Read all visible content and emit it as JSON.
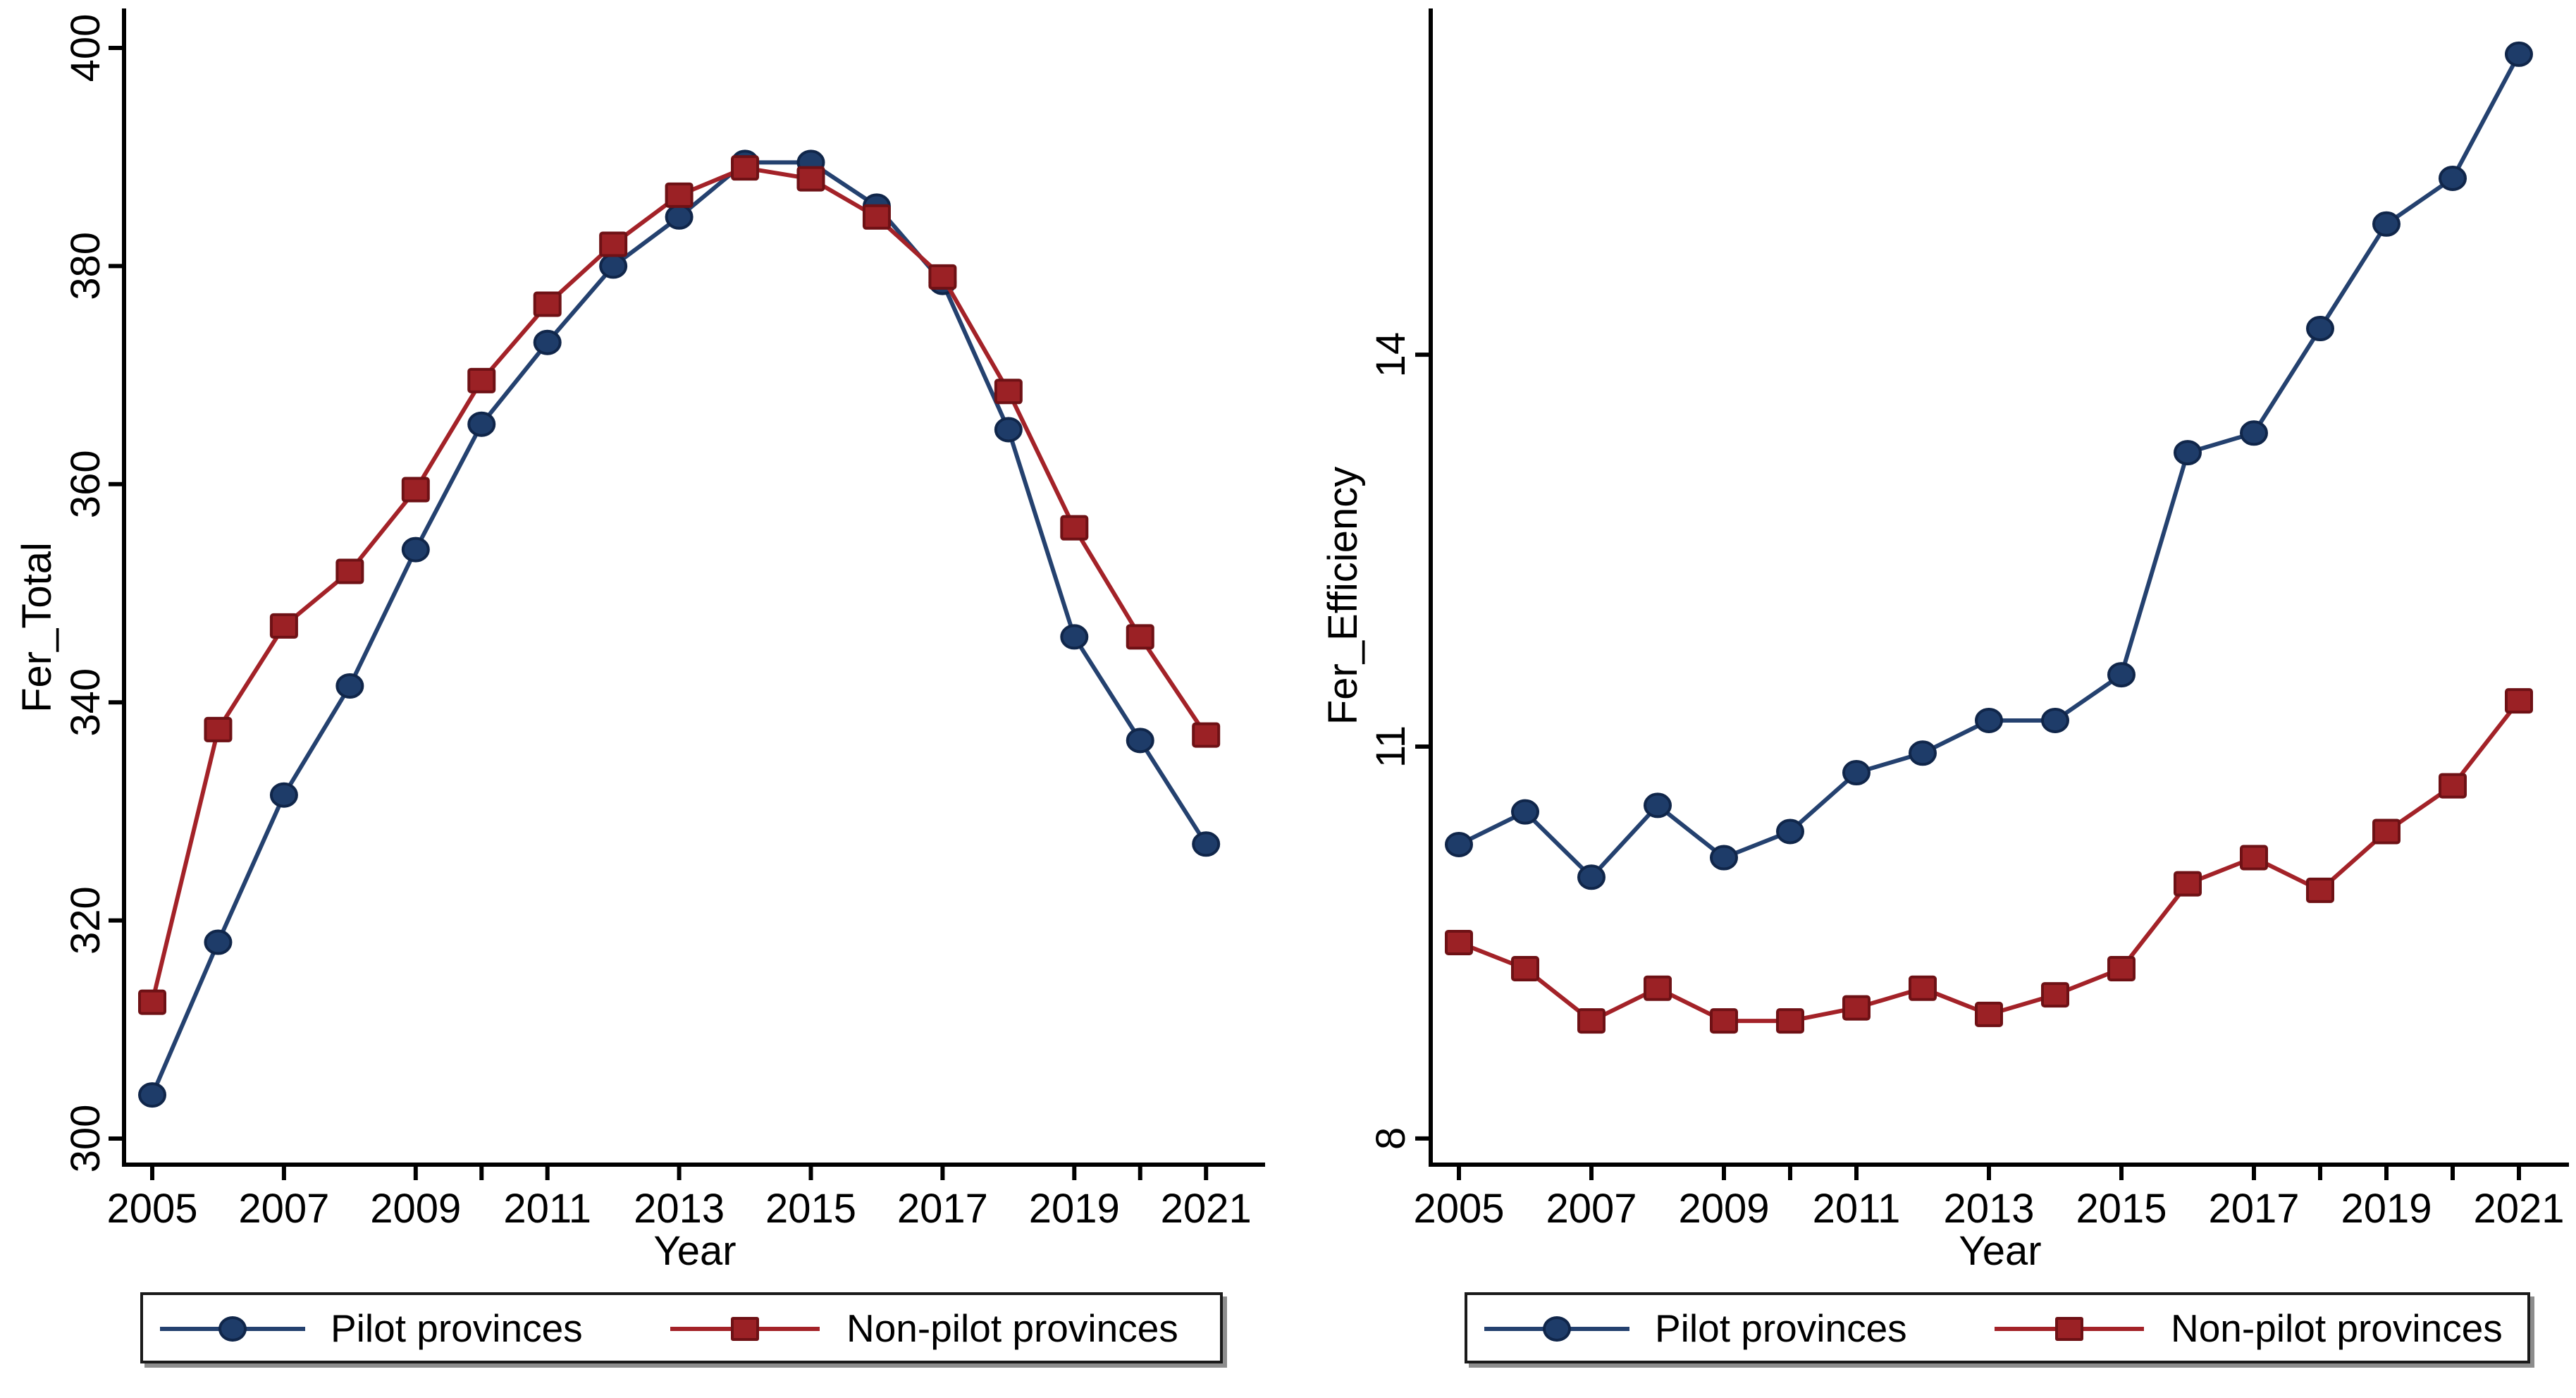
{
  "figure": {
    "background": "#ffffff",
    "description": "Two Stata-style line charts comparing pilot and non-pilot provinces, 2005-2021"
  },
  "colors": {
    "pilot_line": "#24416f",
    "pilot_fill": "#1e3c69",
    "pilot_stroke": "#10264a",
    "nonpilot_line": "#a32228",
    "nonpilot_fill": "#9b2125",
    "nonpilot_stroke": "#6e1115",
    "axis": "#000000",
    "text": "#000000"
  },
  "legend": {
    "pilot_label": "Pilot provinces",
    "nonpilot_label": "Non-pilot provinces",
    "pilot_marker": "circle-icon",
    "nonpilot_marker": "square-icon"
  },
  "chart_data": [
    {
      "type": "line",
      "title": "",
      "xlabel": "Year",
      "ylabel": "Fer_Total",
      "x": [
        2005,
        2006,
        2007,
        2008,
        2009,
        2010,
        2011,
        2012,
        2013,
        2014,
        2015,
        2016,
        2017,
        2018,
        2019,
        2020,
        2021
      ],
      "xticks": [
        2005,
        2007,
        2009,
        2010,
        2011,
        2013,
        2015,
        2017,
        2019,
        2020,
        2021
      ],
      "xtick_labels": [
        2005,
        2007,
        2009,
        2011,
        2013,
        2015,
        2017,
        2019,
        2021
      ],
      "yticks": [
        300,
        320,
        340,
        360,
        380,
        400
      ],
      "ylim": [
        297.6,
        403.6
      ],
      "xlim": [
        2004.6,
        2021.9
      ],
      "grid": false,
      "legend_position": "bottom",
      "series": [
        {
          "name": "Pilot provinces",
          "marker": "circle",
          "values": [
            304,
            318,
            331.5,
            341.5,
            354,
            365.5,
            373,
            380,
            384.5,
            389.5,
            389.5,
            385.5,
            378.5,
            365,
            346,
            336.5,
            327
          ]
        },
        {
          "name": "Non-pilot provinces",
          "marker": "square",
          "values": [
            312.5,
            337.5,
            347,
            352,
            359.5,
            369.5,
            376.5,
            382,
            386.5,
            389,
            388,
            384.5,
            379,
            368.5,
            356,
            346,
            337
          ]
        }
      ]
    },
    {
      "type": "line",
      "title": "",
      "xlabel": "Year",
      "ylabel": "Fer_Efficiency",
      "x": [
        2005,
        2006,
        2007,
        2008,
        2009,
        2010,
        2011,
        2012,
        2013,
        2014,
        2015,
        2016,
        2017,
        2018,
        2019,
        2020,
        2021
      ],
      "xticks": [
        2005,
        2007,
        2009,
        2010,
        2011,
        2013,
        2015,
        2017,
        2018,
        2019,
        2020,
        2021
      ],
      "xtick_labels": [
        2005,
        2007,
        2009,
        2011,
        2013,
        2015,
        2017,
        2019,
        2021
      ],
      "yticks": [
        8,
        11,
        14
      ],
      "ylim": [
        7.8,
        16.65
      ],
      "xlim": [
        2004.6,
        2021.8
      ],
      "grid": false,
      "legend_position": "bottom",
      "series": [
        {
          "name": "Pilot provinces",
          "marker": "circle",
          "values": [
            10.25,
            10.5,
            10.0,
            10.55,
            10.15,
            10.35,
            10.8,
            10.95,
            11.2,
            11.2,
            11.55,
            13.25,
            13.4,
            14.2,
            15.0,
            15.35,
            16.3
          ]
        },
        {
          "name": "Non-pilot provinces",
          "marker": "square",
          "values": [
            9.5,
            9.3,
            8.9,
            9.15,
            8.9,
            8.9,
            9.0,
            9.15,
            8.95,
            9.1,
            9.3,
            9.95,
            10.15,
            9.9,
            10.35,
            10.7,
            11.35
          ]
        }
      ]
    }
  ]
}
